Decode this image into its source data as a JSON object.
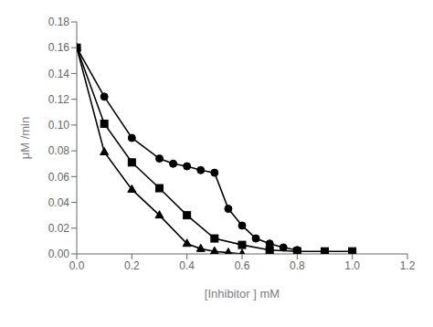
{
  "chart_data": {
    "type": "line",
    "xlabel": "[Inhibitor ] mM",
    "ylabel": "μM /min",
    "xlim": [
      0,
      1.2
    ],
    "ylim": [
      0,
      0.18
    ],
    "xticks": [
      {
        "value": 0,
        "label": "0.0"
      },
      0.2,
      0.4,
      0.6,
      0.8,
      {
        "value": 1.0,
        "label": "1.0"
      },
      1.2
    ],
    "yticks": [
      {
        "value": 0,
        "label": "0.00"
      },
      0.02,
      0.04,
      0.06,
      0.08,
      {
        "value": 0.1,
        "label": "0.10"
      },
      0.12,
      0.14,
      0.16,
      0.18
    ],
    "grid": false,
    "series": [
      {
        "color": "#000000",
        "marker": "circle",
        "x": [
          0,
          0.1,
          0.2,
          0.3,
          0.35,
          0.4,
          0.45,
          0.5,
          0.55,
          0.6,
          0.65,
          0.7,
          0.75,
          0.8
        ],
        "values": [
          0.16,
          0.122,
          0.09,
          0.074,
          0.07,
          0.068,
          0.065,
          0.063,
          0.035,
          0.022,
          0.012,
          0.008,
          0.005,
          0.003
        ]
      },
      {
        "color": "#000000",
        "marker": "square",
        "x": [
          0,
          0.1,
          0.2,
          0.3,
          0.4,
          0.5,
          0.6,
          0.7,
          0.8,
          0.9,
          1.0
        ],
        "values": [
          0.16,
          0.101,
          0.071,
          0.051,
          0.03,
          0.012,
          0.007,
          0.003,
          0.002,
          0.002,
          0.002
        ]
      },
      {
        "color": "#000000",
        "marker": "triangle",
        "x": [
          0,
          0.1,
          0.2,
          0.3,
          0.4,
          0.45,
          0.5,
          0.55,
          0.6
        ],
        "values": [
          0.16,
          0.079,
          0.05,
          0.03,
          0.008,
          0.004,
          0.002,
          0.001,
          0.0
        ]
      }
    ]
  }
}
